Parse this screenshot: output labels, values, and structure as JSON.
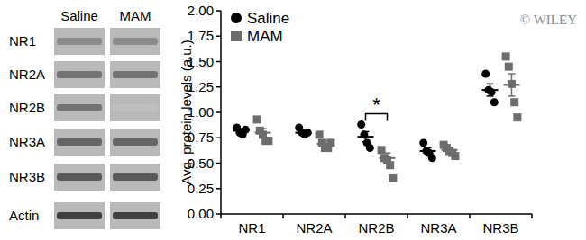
{
  "blot": {
    "columns": [
      "Saline",
      "MAM"
    ],
    "rows": [
      "NR1",
      "NR2A",
      "NR2B",
      "NR3A",
      "NR3B",
      "Actin"
    ]
  },
  "chart_data": {
    "type": "dot",
    "y_label": "Avg. protein levels (a.u.)",
    "categories": [
      "NR1",
      "NR2A",
      "NR2B",
      "NR3A",
      "NR3B"
    ],
    "ylim": [
      0,
      2
    ],
    "yticks": [
      {
        "value": 0,
        "label": "0.00"
      },
      {
        "value": 0.25,
        "label": "0.25"
      },
      {
        "value": 0.5,
        "label": "0.50"
      },
      {
        "value": 0.75,
        "label": "0.75"
      },
      {
        "value": 1,
        "label": "1.00"
      },
      {
        "value": 1.25,
        "label": "1.25"
      },
      {
        "value": 1.5,
        "label": "1.50"
      },
      {
        "value": 1.75,
        "label": "1.75"
      },
      {
        "value": 2,
        "label": "2.00"
      }
    ],
    "legend": "upper left",
    "series": [
      {
        "name": "Saline",
        "color": "#000000",
        "marker": "circle",
        "values": [
          0.82,
          0.8,
          0.76,
          0.62,
          1.22
        ],
        "error": [
          0.02,
          0.02,
          0.05,
          0.03,
          0.06
        ],
        "points": [
          [
            0.85,
            0.8,
            0.78,
            0.83
          ],
          [
            0.85,
            0.8,
            0.78,
            0.8
          ],
          [
            0.88,
            0.78,
            0.7,
            0.65
          ],
          [
            0.7,
            0.62,
            0.6,
            0.55
          ],
          [
            1.38,
            1.22,
            1.2,
            1.1
          ]
        ]
      },
      {
        "name": "MAM",
        "color": "#6d6d6d",
        "marker": "square",
        "values": [
          0.8,
          0.69,
          0.55,
          0.63,
          1.27
        ],
        "error": [
          0.04,
          0.03,
          0.05,
          0.02,
          0.11
        ],
        "points": [
          [
            0.93,
            0.82,
            0.78,
            0.72,
            0.72
          ],
          [
            0.78,
            0.7,
            0.65,
            0.65,
            0.7
          ],
          [
            0.63,
            0.55,
            0.53,
            0.48,
            0.35
          ],
          [
            0.68,
            0.65,
            0.62,
            0.6,
            0.57
          ],
          [
            1.55,
            1.45,
            1.28,
            1.1,
            0.95
          ]
        ]
      }
    ],
    "annotations": [
      {
        "text": "*",
        "category": "NR2B"
      },
      {
        "text": "© WILEY"
      }
    ]
  }
}
